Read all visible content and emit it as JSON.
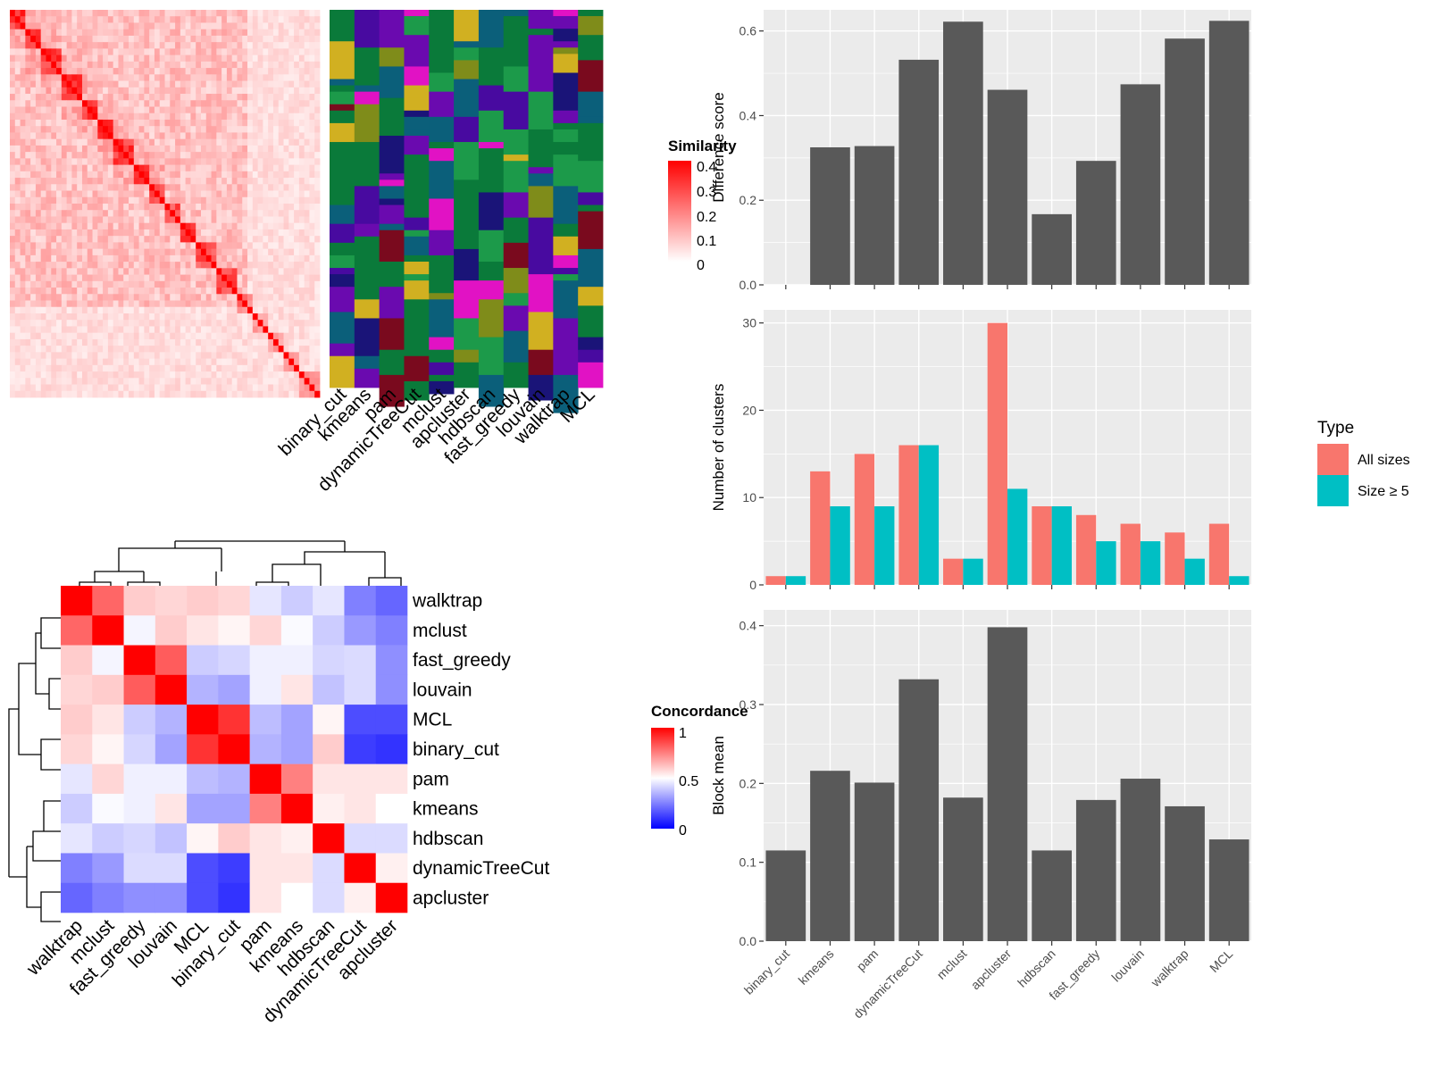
{
  "methods_order": [
    "binary_cut",
    "kmeans",
    "pam",
    "dynamicTreeCut",
    "mclust",
    "apcluster",
    "hdbscan",
    "fast_greedy",
    "louvain",
    "walktrap",
    "MCL"
  ],
  "colors": {
    "bar_gray": "#595959",
    "panel_bg": "#EBEBEB",
    "all_sizes": "#F8766D",
    "size_ge5": "#00BFC4",
    "heat_red": "#FF0000",
    "heat_blue": "#0000FF",
    "heat_green": "#0A7A3A"
  },
  "similarity_legend": {
    "title": "Similarity",
    "ticks": [
      "0.4",
      "0.3",
      "0.2",
      "0.1",
      "0"
    ]
  },
  "concordance_legend": {
    "title": "Concordance",
    "ticks": [
      "1",
      "0.5",
      "0"
    ]
  },
  "concordance_labels": [
    "walktrap",
    "mclust",
    "fast_greedy",
    "louvain",
    "MCL",
    "binary_cut",
    "pam",
    "kmeans",
    "hdbscan",
    "dynamicTreeCut",
    "apcluster"
  ],
  "chart_data": [
    {
      "type": "heatmap",
      "title": "",
      "legend_title": "Similarity",
      "scale": [
        0,
        0.4
      ],
      "column_labels": [
        "binary_cut",
        "kmeans",
        "pam",
        "dynamicTreeCut",
        "mclust",
        "apcluster",
        "hdbscan",
        "fast_greedy",
        "louvain",
        "walktrap",
        "MCL"
      ]
    },
    {
      "type": "heatmap",
      "title": "",
      "legend_title": "Concordance",
      "scale": [
        0,
        1
      ],
      "rows": [
        "walktrap",
        "mclust",
        "fast_greedy",
        "louvain",
        "MCL",
        "binary_cut",
        "pam",
        "kmeans",
        "hdbscan",
        "dynamicTreeCut",
        "apcluster"
      ],
      "columns": [
        "walktrap",
        "mclust",
        "fast_greedy",
        "louvain",
        "MCL",
        "binary_cut",
        "pam",
        "kmeans",
        "hdbscan",
        "dynamicTreeCut",
        "apcluster"
      ],
      "values": [
        [
          1.0,
          0.8,
          0.6,
          0.58,
          0.6,
          0.58,
          0.45,
          0.4,
          0.45,
          0.25,
          0.2
        ],
        [
          0.8,
          1.0,
          0.48,
          0.6,
          0.55,
          0.52,
          0.58,
          0.49,
          0.4,
          0.3,
          0.25
        ],
        [
          0.6,
          0.48,
          1.0,
          0.82,
          0.4,
          0.42,
          0.47,
          0.47,
          0.42,
          0.43,
          0.28
        ],
        [
          0.58,
          0.6,
          0.82,
          1.0,
          0.35,
          0.32,
          0.47,
          0.55,
          0.38,
          0.43,
          0.28
        ],
        [
          0.6,
          0.55,
          0.4,
          0.35,
          1.0,
          0.9,
          0.37,
          0.32,
          0.52,
          0.15,
          0.15
        ],
        [
          0.58,
          0.52,
          0.42,
          0.32,
          0.9,
          1.0,
          0.35,
          0.32,
          0.6,
          0.12,
          0.1
        ],
        [
          0.45,
          0.58,
          0.47,
          0.47,
          0.37,
          0.35,
          1.0,
          0.75,
          0.55,
          0.55,
          0.55
        ],
        [
          0.4,
          0.49,
          0.47,
          0.55,
          0.32,
          0.32,
          0.75,
          1.0,
          0.53,
          0.55,
          0.5
        ],
        [
          0.45,
          0.4,
          0.42,
          0.38,
          0.52,
          0.6,
          0.55,
          0.53,
          1.0,
          0.43,
          0.43
        ],
        [
          0.25,
          0.3,
          0.43,
          0.43,
          0.15,
          0.12,
          0.55,
          0.55,
          0.43,
          1.0,
          0.53
        ],
        [
          0.2,
          0.25,
          0.28,
          0.28,
          0.15,
          0.1,
          0.55,
          0.5,
          0.43,
          0.53,
          1.0
        ]
      ]
    },
    {
      "type": "bar",
      "title": "",
      "xlabel": "",
      "ylabel": "Difference score",
      "categories": [
        "binary_cut",
        "kmeans",
        "pam",
        "dynamicTreeCut",
        "mclust",
        "apcluster",
        "hdbscan",
        "fast_greedy",
        "louvain",
        "walktrap",
        "MCL"
      ],
      "values": [
        0.0,
        0.325,
        0.328,
        0.532,
        0.622,
        0.461,
        0.167,
        0.293,
        0.474,
        0.582,
        0.624
      ],
      "ylim": [
        0,
        0.65
      ],
      "yticks": [
        0.0,
        0.2,
        0.4,
        0.6
      ],
      "ytick_labels": [
        "0.0",
        "0.2",
        "0.4",
        "0.6"
      ],
      "grid": true
    },
    {
      "type": "bar",
      "title": "",
      "xlabel": "",
      "ylabel": "Number of clusters",
      "categories": [
        "binary_cut",
        "kmeans",
        "pam",
        "dynamicTreeCut",
        "mclust",
        "apcluster",
        "hdbscan",
        "fast_greedy",
        "louvain",
        "walktrap",
        "MCL"
      ],
      "legend_title": "Type",
      "legend_position": "right",
      "series": [
        {
          "name": "All sizes",
          "values": [
            1,
            13,
            15,
            16,
            3,
            30,
            9,
            8,
            7,
            6,
            7
          ]
        },
        {
          "name": "Size ≥ 5",
          "values": [
            1,
            9,
            9,
            16,
            3,
            11,
            9,
            5,
            5,
            3,
            1
          ]
        }
      ],
      "ylim": [
        0,
        31.5
      ],
      "yticks": [
        0,
        10,
        20,
        30
      ],
      "ytick_labels": [
        "0",
        "10",
        "20",
        "30"
      ],
      "grid": true
    },
    {
      "type": "bar",
      "title": "",
      "xlabel": "",
      "ylabel": "Block mean",
      "categories": [
        "binary_cut",
        "kmeans",
        "pam",
        "dynamicTreeCut",
        "mclust",
        "apcluster",
        "hdbscan",
        "fast_greedy",
        "louvain",
        "walktrap",
        "MCL"
      ],
      "values": [
        0.115,
        0.216,
        0.201,
        0.332,
        0.182,
        0.398,
        0.115,
        0.179,
        0.206,
        0.171,
        0.129
      ],
      "ylim": [
        0,
        0.42
      ],
      "yticks": [
        0.0,
        0.1,
        0.2,
        0.3,
        0.4
      ],
      "ytick_labels": [
        "0.0",
        "0.1",
        "0.2",
        "0.3",
        "0.4"
      ],
      "grid": true
    }
  ]
}
